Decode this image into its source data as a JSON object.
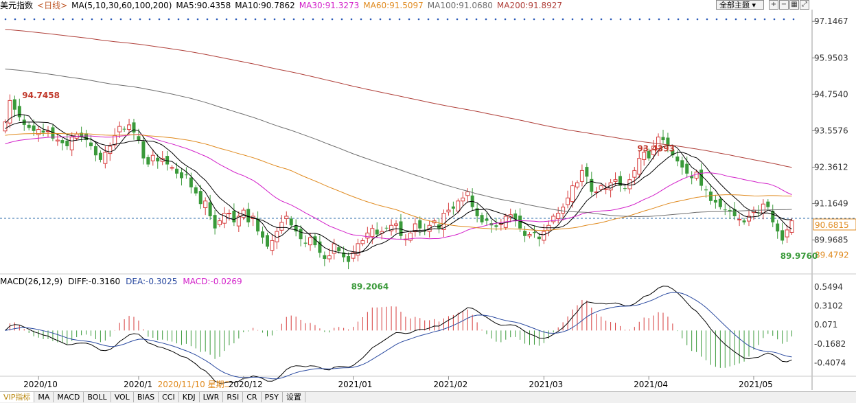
{
  "header": {
    "symbol": "美元指数",
    "period": "<日线>",
    "ma_label": "MA(5,10,30,60,100,200)",
    "ma5": "MA5:90.4358",
    "ma10": "MA10:90.7862",
    "ma30": "MA30:91.3273",
    "ma60": "MA60:91.5097",
    "ma100": "MA100:91.0680",
    "ma200": "MA200:91.8927",
    "theme_button": "全部主题",
    "icon_names": [
      "zoom-in-icon",
      "zoom-out-icon",
      "grid-icon",
      "expand-icon"
    ]
  },
  "colors": {
    "up": "#d63b3b",
    "down": "#3a9a3a",
    "ma5": "#000000",
    "ma10": "#000000",
    "ma30": "#d21fc9",
    "ma60": "#e08a1e",
    "ma100": "#6e6e6e",
    "ma200": "#b0403a",
    "label_high": "#c0392b",
    "label_low": "#3a9a3a"
  },
  "macd_header": {
    "title": "MACD(26,12,9)",
    "diff": "DIFF:-0.3160",
    "dea": "DEA:-0.3025",
    "macd": "MACD:-0.0269"
  },
  "tabs": [
    "VIP指标",
    "MA",
    "MACD",
    "BOLL",
    "VOL",
    "BIAS",
    "CCI",
    "KDJ",
    "LWR",
    "RSI",
    "CR",
    "PSY",
    "设置"
  ],
  "chart_data": {
    "type": "candlestick",
    "price_ticks": [
      97.1467,
      95.9503,
      94.754,
      93.5576,
      92.3612,
      91.1649,
      89.9685
    ],
    "price_range": [
      88.9,
      97.4
    ],
    "current_price": "90.6815",
    "lowest_visible_label": "89.4792",
    "annotations": [
      {
        "text": "94.7458",
        "kind": "high",
        "index": 3
      },
      {
        "text": "93.4393",
        "kind": "high",
        "index": 132
      },
      {
        "text": "89.2064",
        "kind": "low",
        "index": 72
      },
      {
        "text": "89.9760",
        "kind": "low",
        "index": 162
      }
    ],
    "x_labels": [
      {
        "text": "2020/10",
        "index": 7
      },
      {
        "text": "2020/1",
        "index": 28
      },
      {
        "text": "2020/11/10 星期二",
        "index": 34,
        "cursor": true
      },
      {
        "text": "2020/12",
        "index": 50
      },
      {
        "text": "2021/01",
        "index": 73
      },
      {
        "text": "2021/02",
        "index": 93
      },
      {
        "text": "2021/03",
        "index": 113
      },
      {
        "text": "2021/04",
        "index": 135
      },
      {
        "text": "2021/05",
        "index": 157
      }
    ],
    "closes": [
      93.85,
      94.55,
      94.25,
      94.0,
      93.75,
      93.65,
      93.55,
      93.6,
      93.5,
      93.55,
      93.3,
      93.25,
      93.15,
      93.05,
      93.35,
      93.45,
      93.35,
      93.25,
      93.05,
      92.75,
      92.6,
      92.85,
      93.05,
      93.4,
      93.7,
      93.6,
      93.75,
      93.5,
      93.25,
      92.65,
      92.45,
      92.75,
      92.55,
      92.65,
      92.45,
      92.35,
      92.15,
      92.0,
      92.1,
      91.7,
      91.5,
      91.15,
      91.25,
      90.75,
      90.35,
      90.6,
      90.85,
      90.85,
      90.55,
      90.75,
      90.95,
      90.55,
      90.75,
      90.25,
      90.05,
      89.75,
      89.95,
      90.25,
      90.55,
      90.75,
      90.45,
      90.25,
      90.0,
      89.85,
      90.05,
      89.8,
      89.55,
      89.35,
      89.45,
      89.85,
      89.6,
      89.4,
      89.25,
      89.55,
      89.85,
      89.95,
      90.2,
      90.35,
      90.15,
      90.25,
      90.35,
      90.45,
      90.5,
      90.1,
      90.0,
      90.2,
      90.5,
      90.35,
      90.25,
      90.45,
      90.6,
      90.35,
      90.85,
      90.95,
      91.0,
      91.25,
      91.35,
      91.55,
      91.05,
      90.75,
      90.55,
      90.6,
      90.45,
      90.4,
      90.5,
      90.75,
      90.8,
      90.65,
      90.35,
      90.1,
      90.15,
      90.2,
      90.0,
      90.25,
      90.45,
      90.75,
      90.85,
      91.05,
      91.35,
      91.75,
      91.85,
      92.25,
      92.05,
      91.55,
      91.55,
      91.75,
      91.65,
      91.85,
      91.95,
      91.75,
      91.65,
      91.95,
      92.25,
      92.65,
      92.85,
      92.65,
      93.05,
      93.35,
      93.25,
      93.05,
      92.75,
      92.55,
      92.35,
      92.15,
      92.0,
      92.2,
      91.75,
      91.6,
      91.25,
      91.2,
      91.05,
      90.95,
      90.9,
      90.75,
      90.65,
      90.55,
      90.75,
      90.95,
      90.85,
      91.15,
      91.05,
      90.55,
      90.25,
      89.95,
      90.3,
      90.6
    ],
    "macd_ticks": [
      0.5494,
      0.3102,
      0.071,
      -0.1682,
      -0.4074
    ],
    "macd_range": [
      -0.55,
      0.6
    ]
  }
}
